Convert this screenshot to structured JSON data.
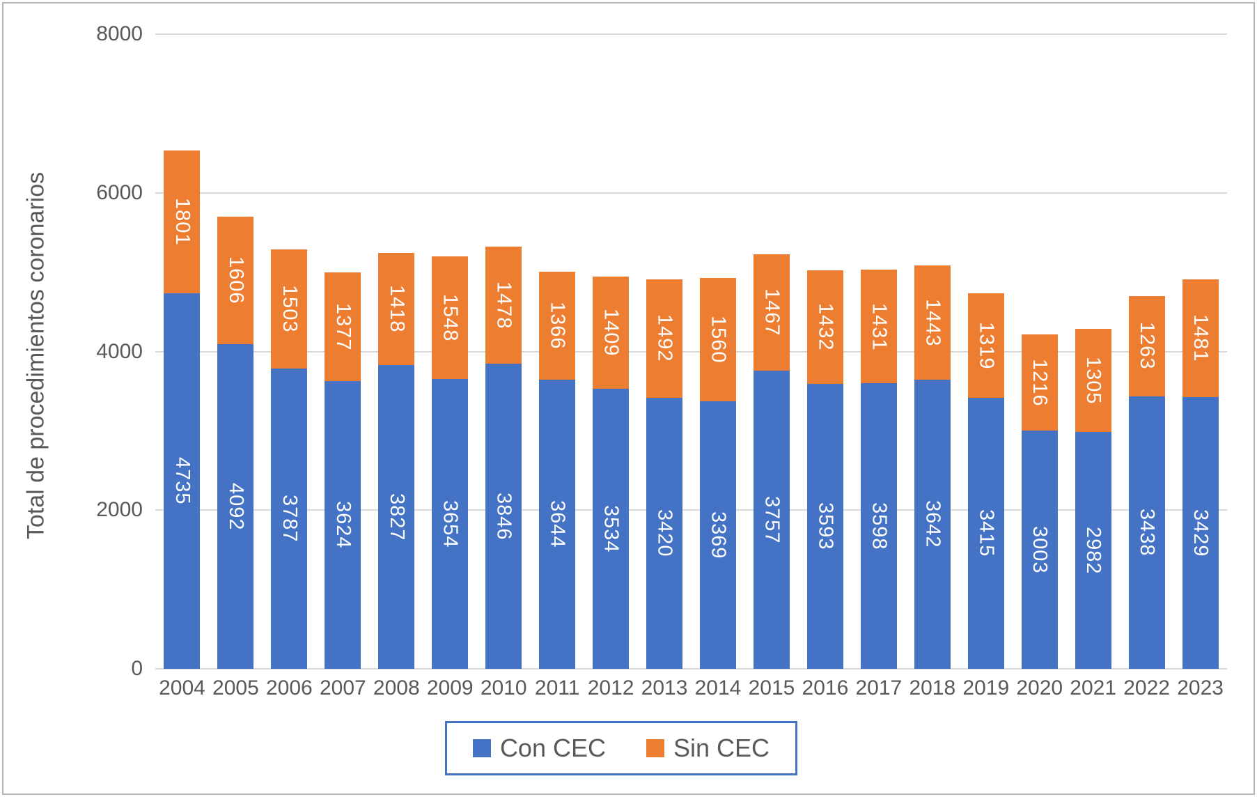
{
  "chart_data": {
    "type": "bar",
    "stacked": true,
    "orientation": "vertical",
    "categories": [
      "2004",
      "2005",
      "2006",
      "2007",
      "2008",
      "2009",
      "2010",
      "2011",
      "2012",
      "2013",
      "2014",
      "2015",
      "2016",
      "2017",
      "2018",
      "2019",
      "2020",
      "2021",
      "2022",
      "2023"
    ],
    "series": [
      {
        "name": "Con CEC",
        "color": "#4472C4",
        "values": [
          4735,
          4092,
          3787,
          3624,
          3827,
          3654,
          3846,
          3644,
          3534,
          3420,
          3369,
          3757,
          3593,
          3598,
          3642,
          3415,
          3003,
          2982,
          3438,
          3429
        ]
      },
      {
        "name": "Sin CEC",
        "color": "#ED7D31",
        "values": [
          1801,
          1606,
          1503,
          1377,
          1418,
          1548,
          1478,
          1366,
          1409,
          1492,
          1560,
          1467,
          1432,
          1431,
          1443,
          1319,
          1216,
          1305,
          1263,
          1481
        ]
      }
    ],
    "ylabel": "Total de procedimientos coronarios",
    "xlabel": "",
    "ylim": [
      0,
      8000
    ],
    "yticks": [
      0,
      2000,
      4000,
      6000,
      8000
    ],
    "grid": true,
    "data_labels": true,
    "data_label_color": "#ffffff",
    "legend_position": "bottom",
    "legend": [
      {
        "label": "Con CEC",
        "color": "#4472C4"
      },
      {
        "label": "Sin CEC",
        "color": "#ED7D31"
      }
    ]
  },
  "style": {
    "axis_text_color": "#595959",
    "gridline_color": "#d9d9d9",
    "legend_border_color": "#4472C4",
    "outer_border_color": "#b5b5b5",
    "background": "#ffffff"
  }
}
